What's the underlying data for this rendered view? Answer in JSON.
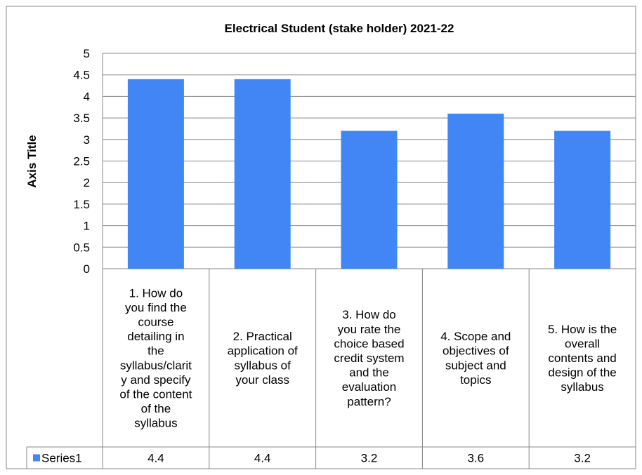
{
  "chart_data": {
    "type": "bar",
    "title": "Electrical Student (stake holder) 2021-22",
    "ylabel": "Axis Title",
    "xlabel": "",
    "ylim": [
      0,
      5
    ],
    "ytick_step": 0.5,
    "yticks": [
      "0",
      "0.5",
      "1",
      "1.5",
      "2",
      "2.5",
      "3",
      "3.5",
      "4",
      "4.5",
      "5"
    ],
    "grid": true,
    "legend_placement": "data-table",
    "categories": [
      [
        "1. How do",
        "you find the",
        "course",
        "detailing in",
        "the",
        "syllabus/clarit",
        "y and specify",
        "of the content",
        "of the",
        "syllabus"
      ],
      [
        "2. Practical",
        "application of",
        "syllabus of",
        "your class"
      ],
      [
        "3. How do",
        "you rate the",
        "choice based",
        "credit system",
        "and the",
        "evaluation",
        "pattern?"
      ],
      [
        "4. Scope and",
        "objectives of",
        "subject and",
        "topics"
      ],
      [
        "5. How is the",
        "overall",
        "contents and",
        "design of the",
        "syllabus"
      ]
    ],
    "series": [
      {
        "name": "Series1",
        "values": [
          4.4,
          4.4,
          3.2,
          3.6,
          3.2
        ],
        "labels": [
          "4.4",
          "4.4",
          "3.2",
          "3.6",
          "3.2"
        ],
        "color": "#4285f4"
      }
    ],
    "colors": {
      "bar": "#4285f4",
      "grid": "#878787",
      "border": "#878787",
      "text": "#000000"
    }
  }
}
